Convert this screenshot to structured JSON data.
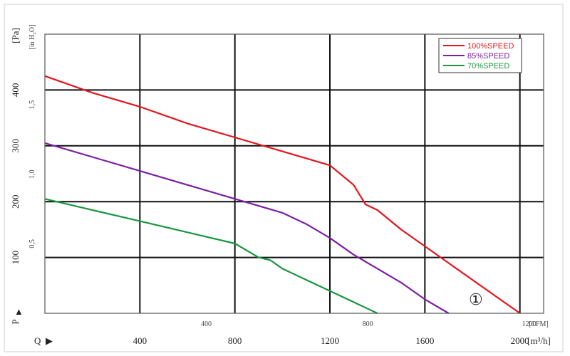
{
  "chart_data": {
    "type": "line",
    "x_primary": {
      "unit_label": "[m³/h]",
      "prefix": "Q",
      "ticks": [
        400,
        800,
        1200,
        1600,
        2000
      ],
      "range": [
        0,
        2100
      ]
    },
    "x_secondary": {
      "unit_label": "[CFM]",
      "ticks": [
        400,
        800,
        1200
      ]
    },
    "y_primary": {
      "unit_label": "[Pa]",
      "prefix": "P",
      "ticks": [
        100,
        200,
        300,
        400
      ],
      "range": [
        0,
        500
      ]
    },
    "y_secondary": {
      "unit_label": "[in H₂O]",
      "ticks": [
        "0,5",
        "1,0",
        "1,5"
      ],
      "tick_values": [
        0.5,
        1.0,
        1.5
      ]
    },
    "grid": true,
    "legend_position": "top-right",
    "annotation": "①",
    "series": [
      {
        "name": "100%SPEED",
        "color": "#e3141b",
        "x": [
          0,
          200,
          400,
          600,
          800,
          1000,
          1200,
          1300,
          1350,
          1400,
          1500,
          1600,
          1800,
          2000
        ],
        "y": [
          425,
          395,
          370,
          340,
          315,
          290,
          265,
          230,
          195,
          185,
          150,
          120,
          60,
          0
        ]
      },
      {
        "name": "85%SPEED",
        "color": "#7b1fa2",
        "x": [
          0,
          200,
          400,
          600,
          800,
          1000,
          1100,
          1200,
          1300,
          1400,
          1500,
          1600,
          1700
        ],
        "y": [
          305,
          280,
          255,
          230,
          205,
          180,
          160,
          135,
          105,
          80,
          55,
          25,
          0
        ]
      },
      {
        "name": "70%SPEED",
        "color": "#1a9641",
        "x": [
          0,
          200,
          400,
          600,
          800,
          900,
          950,
          1000,
          1200,
          1400
        ],
        "y": [
          205,
          185,
          165,
          145,
          125,
          100,
          95,
          80,
          40,
          0
        ]
      }
    ]
  }
}
